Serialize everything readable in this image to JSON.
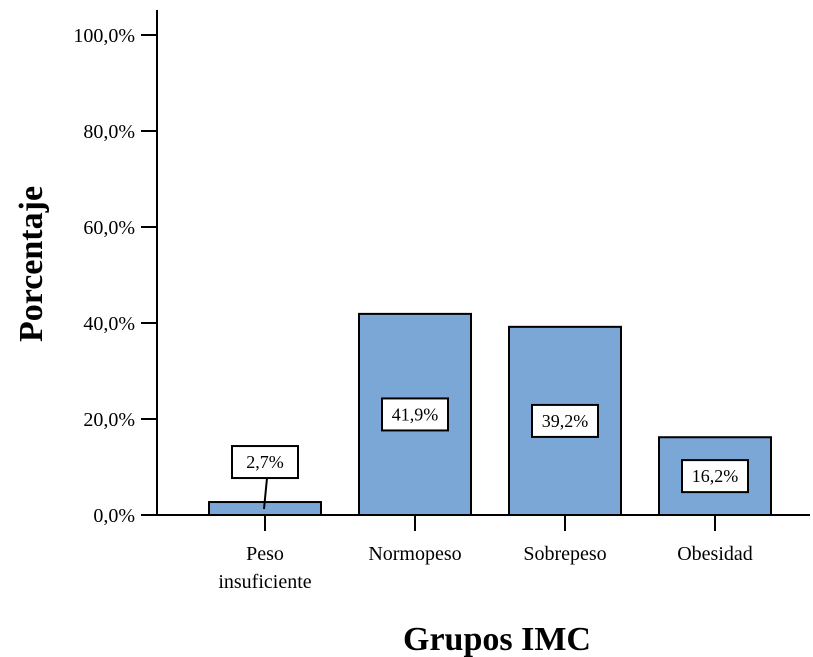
{
  "chart_data": {
    "type": "bar",
    "categories": [
      "Peso insuficiente",
      "Normopeso",
      "Sobrepeso",
      "Obesidad"
    ],
    "category_lines": [
      [
        "Peso",
        "insuficiente"
      ],
      [
        "Normopeso"
      ],
      [
        "Sobrepeso"
      ],
      [
        "Obesidad"
      ]
    ],
    "values": [
      2.7,
      41.9,
      39.2,
      16.2
    ],
    "data_labels": [
      "2,7%",
      "41,9%",
      "39,2%",
      "16,2%"
    ],
    "xlabel": "Grupos IMC",
    "ylabel": "Porcentaje",
    "ylim": [
      0,
      100
    ],
    "yticks": [
      0,
      20,
      40,
      60,
      80,
      100
    ],
    "ytick_labels": [
      "0,0%",
      "20,0%",
      "40,0%",
      "60,0%",
      "80,0%",
      "100,0%"
    ],
    "grid": false,
    "bar_color": "#7BA7D6"
  }
}
